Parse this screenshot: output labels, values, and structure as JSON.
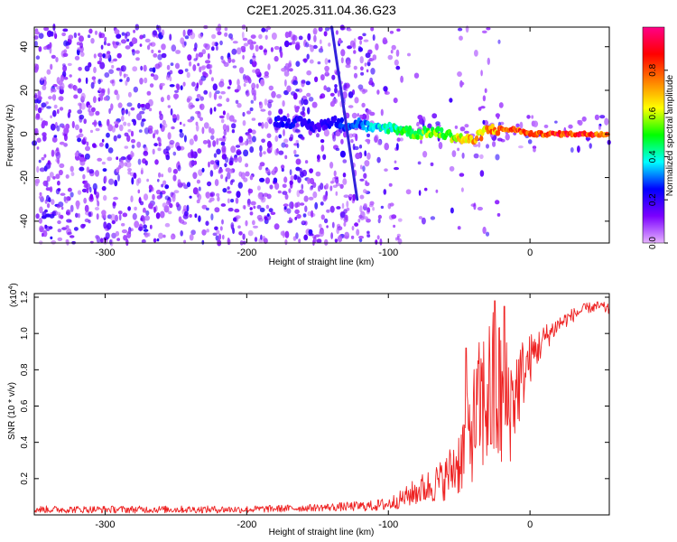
{
  "figure_title": "C2E1.2025.311.04.36.G23",
  "chart_data": [
    {
      "type": "heatmap",
      "title": "C2E1.2025.311.04.36.G23",
      "xlabel": "Height of straight line (km)",
      "ylabel": "Frequency (Hz)",
      "xlim": [
        -350,
        56
      ],
      "ylim": [
        -50,
        49
      ],
      "x_ticks": [
        -300,
        -200,
        -100,
        0
      ],
      "y_ticks": [
        -40,
        -20,
        0,
        20,
        40
      ],
      "colorbar": {
        "label": "Normalized spectral amplitude",
        "range": [
          0,
          1
        ],
        "ticks": [
          0.0,
          0.2,
          0.4,
          0.6,
          0.8
        ],
        "colormap": [
          "#e6b3ff",
          "#7b00ff",
          "#0000ff",
          "#00ffff",
          "#00ff00",
          "#ffff00",
          "#ff7f00",
          "#ff0000",
          "#ff0088"
        ]
      },
      "ridge": {
        "x": [
          -180,
          -160,
          -150,
          -140,
          -130,
          -120,
          -110,
          -100,
          -90,
          -80,
          -70,
          -60,
          -50,
          -40,
          -30,
          -20,
          -10,
          0,
          20,
          40,
          56
        ],
        "freq": [
          6,
          5,
          3,
          6,
          4,
          5,
          2,
          3,
          2,
          0,
          1,
          0,
          -2,
          -3,
          2,
          2,
          2,
          0,
          0,
          0,
          0
        ],
        "amplitude": [
          0.25,
          0.25,
          0.2,
          0.25,
          0.3,
          0.3,
          0.4,
          0.45,
          0.5,
          0.55,
          0.6,
          0.6,
          0.7,
          0.75,
          0.8,
          0.8,
          0.9,
          0.85,
          0.95,
          0.95,
          0.9
        ]
      },
      "streak": {
        "x_start": -140,
        "freq_start": 49,
        "x_end": -122,
        "freq_end": -30
      }
    },
    {
      "type": "line",
      "title": "",
      "xlabel": "Height of straight line (km)",
      "ylabel": "SNR (10 * v/v)",
      "scale_label": "(x10",
      "scale_exponent": "4",
      "xlim": [
        -350,
        56
      ],
      "ylim": [
        0,
        1.22
      ],
      "x_ticks": [
        -300,
        -200,
        -100,
        0
      ],
      "y_ticks": [
        0.2,
        0.4,
        0.6,
        0.8,
        1.0,
        1.2
      ],
      "y_tick_labels": [
        "0.2",
        "0.4",
        "0.6",
        "0.8",
        "1.0",
        "1.2"
      ],
      "series": [
        {
          "name": "SNR",
          "color": "#ee2222",
          "x": [
            -350,
            -300,
            -250,
            -200,
            -150,
            -110,
            -100,
            -90,
            -80,
            -70,
            -60,
            -50,
            -45,
            -40,
            -35,
            -30,
            -25,
            -20,
            -15,
            -10,
            -5,
            0,
            10,
            20,
            30,
            40,
            50,
            56
          ],
          "y": [
            0.03,
            0.03,
            0.03,
            0.03,
            0.04,
            0.05,
            0.06,
            0.09,
            0.13,
            0.16,
            0.2,
            0.3,
            0.4,
            0.5,
            0.6,
            0.65,
            0.66,
            0.64,
            0.6,
            0.68,
            0.78,
            0.86,
            0.97,
            1.05,
            1.1,
            1.14,
            1.15,
            1.13
          ],
          "noise_amplitude": [
            0.02,
            0.02,
            0.02,
            0.02,
            0.02,
            0.03,
            0.04,
            0.05,
            0.08,
            0.1,
            0.12,
            0.2,
            0.25,
            0.32,
            0.4,
            0.45,
            0.5,
            0.45,
            0.35,
            0.28,
            0.2,
            0.14,
            0.08,
            0.05,
            0.04,
            0.03,
            0.03,
            0.03
          ],
          "peaks": [
            {
              "x": -25,
              "y": 1.18
            },
            {
              "x": -18,
              "y": 1.15
            },
            {
              "x": -45,
              "y": 0.92
            }
          ]
        }
      ]
    }
  ]
}
